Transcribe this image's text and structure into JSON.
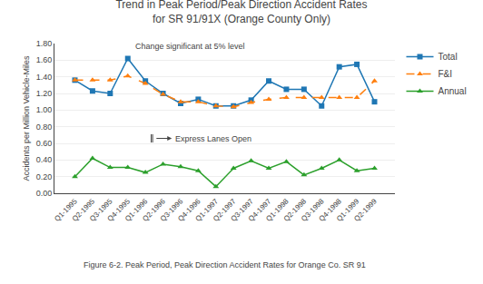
{
  "chart_data": {
    "type": "line",
    "title": "Trend in Peak Period/Peak Direction Accident Rates\nfor SR 91/91X (Orange County Only)",
    "ylabel": "Accidents per Million Vehicle-Miles",
    "caption": "Figure 6-2. Peak Period, Peak Direction Accident Rates for Orange Co. SR 91",
    "annotations": [
      "Change significant at 5% level",
      "Express Lanes Open"
    ],
    "categories": [
      "Q1-1995",
      "Q2-1995",
      "Q3-1995",
      "Q4-1995",
      "Q1-1996",
      "Q2-1996",
      "Q3-1996",
      "Q4-1996",
      "Q1-1997",
      "Q2-1997",
      "Q3-1997",
      "Q4-1997",
      "Q1-1998",
      "Q2-1998",
      "Q3-1998",
      "Q4-1998",
      "Q1-1999",
      "Q2-1999"
    ],
    "series": [
      {
        "name": "Total",
        "marker": "square",
        "line_style": "solid",
        "values": [
          1.36,
          1.23,
          1.2,
          1.62,
          1.35,
          1.2,
          1.08,
          1.13,
          1.05,
          1.05,
          1.12,
          1.35,
          1.25,
          1.25,
          1.05,
          1.52,
          1.55,
          1.1
        ]
      },
      {
        "name": "F&I",
        "marker": "triangle-up",
        "line_style": "dashed",
        "values": [
          1.36,
          1.36,
          1.36,
          1.41,
          1.32,
          1.19,
          1.1,
          1.1,
          1.05,
          1.04,
          1.09,
          1.13,
          1.15,
          1.15,
          1.15,
          1.15,
          1.15,
          1.35
        ]
      },
      {
        "name": "Annual",
        "marker": "triangle-up",
        "line_style": "solid",
        "values": [
          0.2,
          0.42,
          0.31,
          0.31,
          0.25,
          0.35,
          0.32,
          0.27,
          0.08,
          0.3,
          0.39,
          0.3,
          0.38,
          0.22,
          0.3,
          0.4,
          0.27,
          0.3
        ]
      }
    ],
    "ylim": [
      0.0,
      1.8
    ],
    "yticks": [
      {
        "value": 0.0,
        "label": "0.00"
      },
      {
        "value": 0.2,
        "label": "0.20"
      },
      {
        "value": 0.4,
        "label": "0.40"
      },
      {
        "value": 0.6,
        "label": "0.60"
      },
      {
        "value": 0.8,
        "label": "0.80"
      },
      {
        "value": 1.0,
        "label": "1.00"
      },
      {
        "value": 1.2,
        "label": "1.20"
      },
      {
        "value": 1.4,
        "label": "1.40"
      },
      {
        "value": 1.6,
        "label": "1.60"
      },
      {
        "value": 1.8,
        "label": "1.80"
      }
    ],
    "grid": true,
    "legend": "right"
  }
}
